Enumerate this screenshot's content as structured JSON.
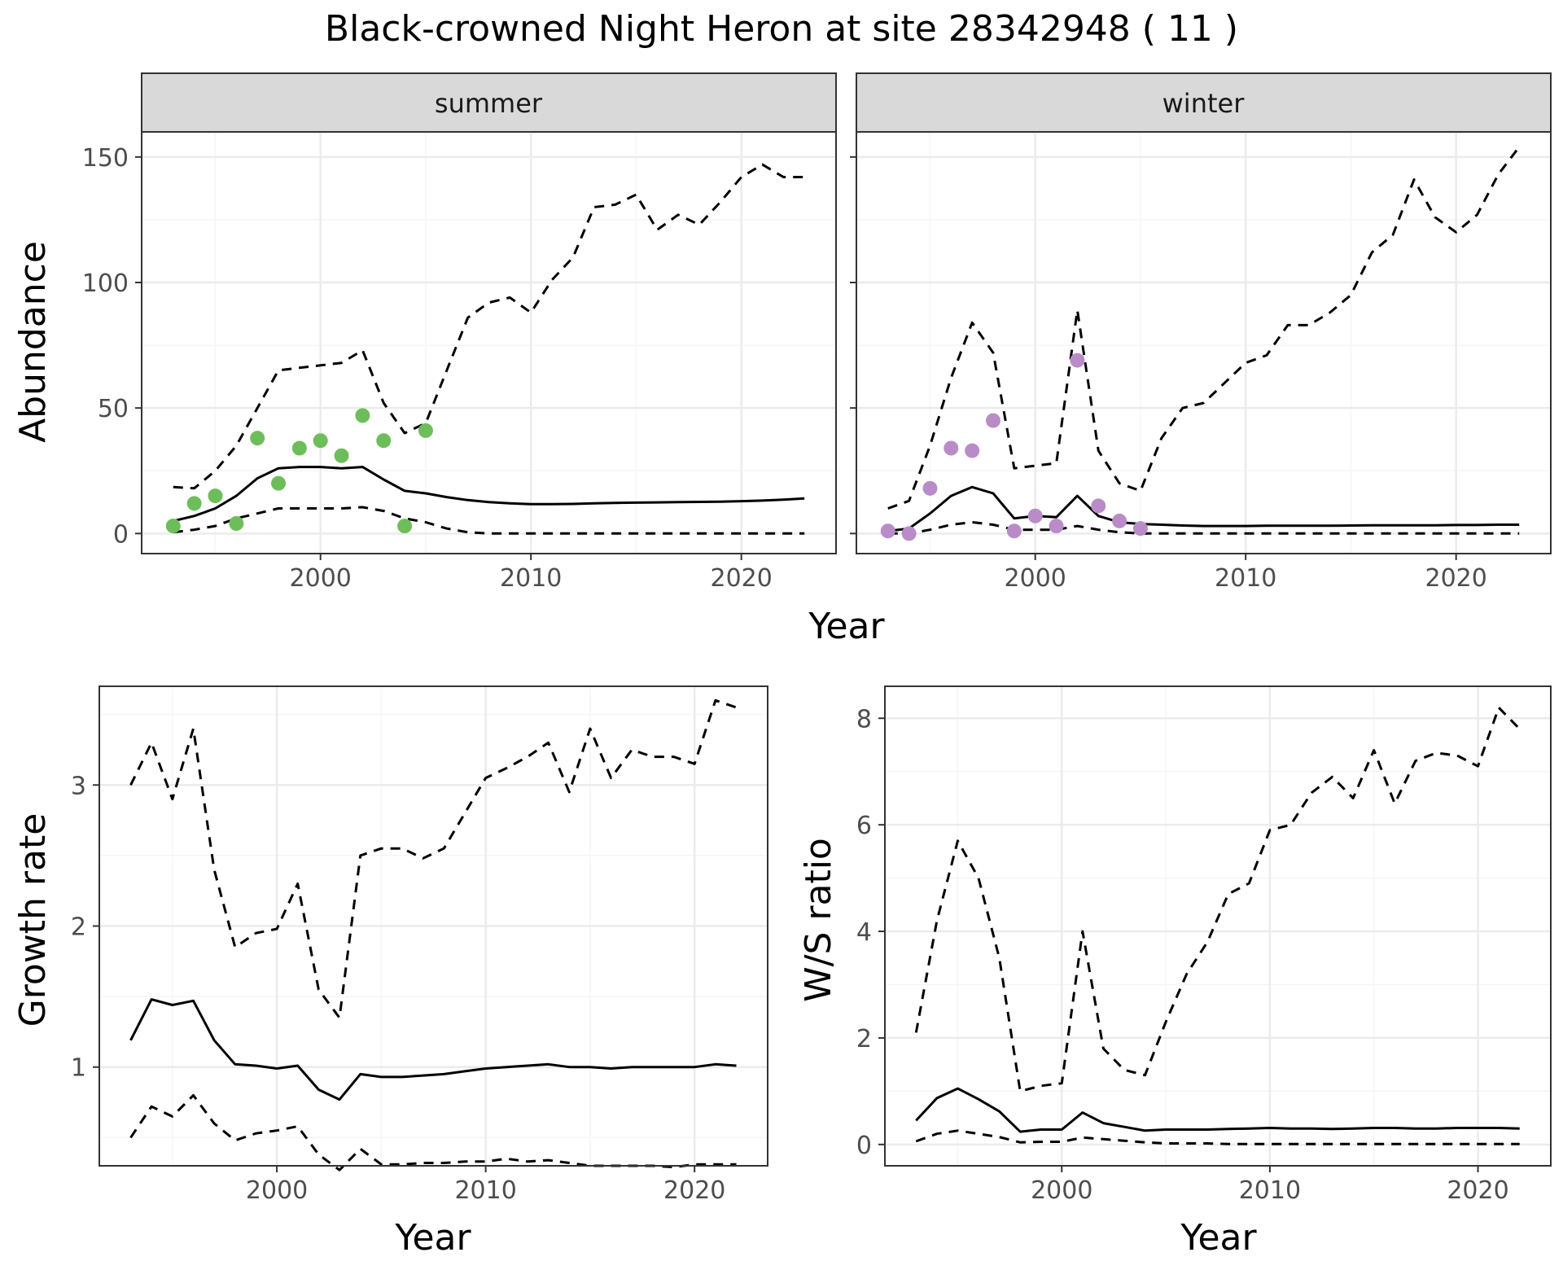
{
  "title": "Black-crowned Night Heron at site 28342948 ( 11 )",
  "colors": {
    "summer_points": "#6DBE5B",
    "winter_points": "#B98CC8",
    "line": "#000000",
    "grid_major": "#EBEBEB",
    "grid_minor": "#F5F5F5",
    "strip_fill": "#D9D9D9",
    "strip_border": "#333333"
  },
  "chart_data": [
    {
      "id": "abundance-summer",
      "type": "line",
      "facet_label": "summer",
      "ylabel": "Abundance",
      "xlabel": "Year",
      "xlim": [
        1991.5,
        2024.5
      ],
      "ylim": [
        -8,
        160
      ],
      "x_ticks": [
        2000,
        2010,
        2020
      ],
      "x_tick_labels": [
        "2000",
        "2010",
        "2020"
      ],
      "y_ticks": [
        0,
        50,
        100,
        150
      ],
      "y_tick_labels": [
        "0",
        "50",
        "100",
        "150"
      ],
      "grid": true,
      "series": [
        {
          "role": "upper",
          "style": "dashed",
          "x": [
            1993,
            1994,
            1995,
            1996,
            1997,
            1998,
            1999,
            2000,
            2001,
            2002,
            2003,
            2004,
            2005,
            2006,
            2007,
            2008,
            2009,
            2010,
            2011,
            2012,
            2013,
            2014,
            2015,
            2016,
            2017,
            2018,
            2019,
            2020,
            2021,
            2022,
            2023
          ],
          "y": [
            18.5,
            18,
            25,
            35,
            50,
            65,
            66,
            67,
            68,
            73,
            52,
            40,
            44,
            65,
            86,
            92,
            94,
            88,
            101,
            110,
            130,
            131,
            135,
            121,
            127,
            123,
            132,
            142,
            147,
            142,
            142
          ]
        },
        {
          "role": "mean",
          "style": "solid",
          "x": [
            1993,
            1994,
            1995,
            1996,
            1997,
            1998,
            1999,
            2000,
            2001,
            2002,
            2003,
            2004,
            2005,
            2006,
            2007,
            2008,
            2009,
            2010,
            2011,
            2012,
            2013,
            2014,
            2015,
            2016,
            2017,
            2018,
            2019,
            2020,
            2021,
            2022,
            2023
          ],
          "y": [
            5,
            7,
            10,
            15,
            22,
            26,
            26.5,
            26.5,
            26,
            26.5,
            21.5,
            17,
            16,
            14.5,
            13.3,
            12.5,
            12,
            11.7,
            11.7,
            11.8,
            12,
            12.2,
            12.3,
            12.4,
            12.5,
            12.6,
            12.7,
            12.9,
            13.1,
            13.5,
            14
          ]
        },
        {
          "role": "lower",
          "style": "dashed",
          "x": [
            1993,
            1994,
            1995,
            1996,
            1997,
            1998,
            1999,
            2000,
            2001,
            2002,
            2003,
            2004,
            2005,
            2006,
            2007,
            2008,
            2009,
            2010,
            2011,
            2012,
            2013,
            2014,
            2015,
            2016,
            2017,
            2018,
            2019,
            2020,
            2021,
            2022,
            2023
          ],
          "y": [
            0.5,
            1.5,
            3,
            6,
            8,
            10,
            10,
            10,
            10,
            10.5,
            9,
            6,
            4.5,
            2,
            0.5,
            0,
            0,
            0,
            0,
            0,
            0,
            0,
            0,
            0,
            0,
            0,
            0,
            0,
            0,
            0,
            0
          ]
        }
      ],
      "points": {
        "x": [
          1993,
          1994,
          1995,
          1996,
          1997,
          1998,
          1999,
          2000,
          2001,
          2002,
          2003,
          2004,
          2005
        ],
        "y": [
          3,
          12,
          15,
          4,
          38,
          20,
          34,
          37,
          31,
          47,
          37,
          3,
          41
        ]
      }
    },
    {
      "id": "abundance-winter",
      "type": "line",
      "facet_label": "winter",
      "xlabel": "Year",
      "xlim": [
        1991.5,
        2024.5
      ],
      "ylim": [
        -8,
        160
      ],
      "x_ticks": [
        2000,
        2010,
        2020
      ],
      "x_tick_labels": [
        "2000",
        "2010",
        "2020"
      ],
      "y_ticks": [
        0,
        50,
        100,
        150
      ],
      "grid": true,
      "series": [
        {
          "role": "upper",
          "style": "dashed",
          "x": [
            1993,
            1994,
            1995,
            1996,
            1997,
            1998,
            1999,
            2000,
            2001,
            2002,
            2003,
            2004,
            2005,
            2006,
            2007,
            2008,
            2009,
            2010,
            2011,
            2012,
            2013,
            2014,
            2015,
            2016,
            2017,
            2018,
            2019,
            2020,
            2021,
            2022,
            2023
          ],
          "y": [
            10,
            13,
            35,
            62,
            84,
            72,
            26,
            27,
            28,
            89,
            33,
            20,
            17,
            38,
            50,
            52,
            60,
            68,
            71,
            83,
            83,
            88,
            95,
            112,
            119,
            141,
            126,
            120,
            127,
            143,
            154
          ]
        },
        {
          "role": "mean",
          "style": "solid",
          "x": [
            1993,
            1994,
            1995,
            1996,
            1997,
            1998,
            1999,
            2000,
            2001,
            2002,
            2003,
            2004,
            2005,
            2006,
            2007,
            2008,
            2009,
            2010,
            2011,
            2012,
            2013,
            2014,
            2015,
            2016,
            2017,
            2018,
            2019,
            2020,
            2021,
            2022,
            2023
          ],
          "y": [
            1,
            2,
            8,
            15,
            18.5,
            16,
            6,
            7,
            6.5,
            15,
            7,
            4.5,
            3.8,
            3.5,
            3.2,
            3,
            3,
            3,
            3.1,
            3.1,
            3.1,
            3.1,
            3.2,
            3.3,
            3.3,
            3.3,
            3.3,
            3.4,
            3.4,
            3.5,
            3.5
          ]
        },
        {
          "role": "lower",
          "style": "dashed",
          "x": [
            1993,
            1994,
            1995,
            1996,
            1997,
            1998,
            1999,
            2000,
            2001,
            2002,
            2003,
            2004,
            2005,
            2006,
            2007,
            2008,
            2009,
            2010,
            2011,
            2012,
            2013,
            2014,
            2015,
            2016,
            2017,
            2018,
            2019,
            2020,
            2021,
            2022,
            2023
          ],
          "y": [
            0,
            0,
            1.5,
            3.5,
            4.5,
            3.5,
            1.5,
            1.5,
            1.5,
            3,
            1.5,
            0.5,
            0,
            0,
            0,
            0,
            0,
            0,
            0,
            0,
            0,
            0,
            0,
            0,
            0,
            0,
            0,
            0,
            0,
            0,
            0
          ]
        }
      ],
      "points": {
        "x": [
          1993,
          1994,
          1995,
          1996,
          1997,
          1998,
          1999,
          2000,
          2001,
          2002,
          2003,
          2004,
          2005
        ],
        "y": [
          1,
          0,
          18,
          34,
          33,
          45,
          1,
          7,
          3,
          69,
          11,
          5,
          2
        ]
      }
    },
    {
      "id": "growth-rate",
      "type": "line",
      "ylabel": "Growth rate",
      "xlabel": "Year",
      "xlim": [
        1991.5,
        2023.5
      ],
      "ylim": [
        0.3,
        3.7
      ],
      "x_ticks": [
        2000,
        2010,
        2020
      ],
      "x_tick_labels": [
        "2000",
        "2010",
        "2020"
      ],
      "y_ticks": [
        1,
        2,
        3
      ],
      "y_tick_labels": [
        "1",
        "2",
        "3"
      ],
      "grid": true,
      "series": [
        {
          "role": "upper",
          "style": "dashed",
          "x": [
            1993,
            1994,
            1995,
            1996,
            1997,
            1998,
            1999,
            2000,
            2001,
            2002,
            2003,
            2004,
            2005,
            2006,
            2007,
            2008,
            2009,
            2010,
            2011,
            2012,
            2013,
            2014,
            2015,
            2016,
            2017,
            2018,
            2019,
            2020,
            2021,
            2022
          ],
          "y": [
            3,
            3.3,
            2.9,
            3.4,
            2.4,
            1.85,
            1.95,
            1.98,
            2.3,
            1.55,
            1.35,
            2.5,
            2.55,
            2.55,
            2.48,
            2.55,
            2.8,
            3.05,
            3.12,
            3.2,
            3.3,
            2.95,
            3.4,
            3.05,
            3.25,
            3.2,
            3.2,
            3.15,
            3.6,
            3.55
          ]
        },
        {
          "role": "mean",
          "style": "solid",
          "x": [
            1993,
            1994,
            1995,
            1996,
            1997,
            1998,
            1999,
            2000,
            2001,
            2002,
            2003,
            2004,
            2005,
            2006,
            2007,
            2008,
            2009,
            2010,
            2011,
            2012,
            2013,
            2014,
            2015,
            2016,
            2017,
            2018,
            2019,
            2020,
            2021,
            2022
          ],
          "y": [
            1.19,
            1.48,
            1.44,
            1.47,
            1.19,
            1.02,
            1.01,
            0.99,
            1.01,
            0.84,
            0.77,
            0.95,
            0.93,
            0.93,
            0.94,
            0.95,
            0.97,
            0.99,
            1,
            1.01,
            1.02,
            1,
            1,
            0.99,
            1,
            1,
            1,
            1,
            1.02,
            1.01
          ]
        },
        {
          "role": "lower",
          "style": "dashed",
          "x": [
            1993,
            1994,
            1995,
            1996,
            1997,
            1998,
            1999,
            2000,
            2001,
            2002,
            2003,
            2004,
            2005,
            2006,
            2007,
            2008,
            2009,
            2010,
            2011,
            2012,
            2013,
            2014,
            2015,
            2016,
            2017,
            2018,
            2019,
            2020,
            2021,
            2022
          ],
          "y": [
            0.5,
            0.72,
            0.65,
            0.8,
            0.6,
            0.48,
            0.53,
            0.55,
            0.58,
            0.38,
            0.27,
            0.42,
            0.31,
            0.31,
            0.32,
            0.32,
            0.33,
            0.33,
            0.35,
            0.33,
            0.34,
            0.32,
            0.3,
            0.3,
            0.3,
            0.3,
            0.29,
            0.31,
            0.31,
            0.31
          ]
        }
      ]
    },
    {
      "id": "ws-ratio",
      "type": "line",
      "ylabel": "W/S ratio",
      "xlabel": "Year",
      "xlim": [
        1991.5,
        2023.5
      ],
      "ylim": [
        -0.4,
        8.6
      ],
      "x_ticks": [
        2000,
        2010,
        2020
      ],
      "x_tick_labels": [
        "2000",
        "2010",
        "2020"
      ],
      "y_ticks": [
        0,
        2,
        4,
        6,
        8
      ],
      "y_tick_labels": [
        "0",
        "2",
        "4",
        "6",
        "8"
      ],
      "grid": true,
      "series": [
        {
          "role": "upper",
          "style": "dashed",
          "x": [
            1993,
            1994,
            1995,
            1996,
            1997,
            1998,
            1999,
            2000,
            2001,
            2002,
            2003,
            2004,
            2005,
            2006,
            2007,
            2008,
            2009,
            2010,
            2011,
            2012,
            2013,
            2014,
            2015,
            2016,
            2017,
            2018,
            2019,
            2020,
            2021,
            2022
          ],
          "y": [
            2.1,
            4.2,
            5.7,
            5,
            3.5,
            1,
            1.1,
            1.15,
            4,
            1.8,
            1.4,
            1.3,
            2.3,
            3.2,
            3.8,
            4.7,
            4.9,
            5.9,
            6,
            6.6,
            6.9,
            6.5,
            7.4,
            6.4,
            7.2,
            7.35,
            7.3,
            7.1,
            8.2,
            7.8
          ]
        },
        {
          "role": "mean",
          "style": "solid",
          "x": [
            1993,
            1994,
            1995,
            1996,
            1997,
            1998,
            1999,
            2000,
            2001,
            2002,
            2003,
            2004,
            2005,
            2006,
            2007,
            2008,
            2009,
            2010,
            2011,
            2012,
            2013,
            2014,
            2015,
            2016,
            2017,
            2018,
            2019,
            2020,
            2021,
            2022
          ],
          "y": [
            0.45,
            0.87,
            1.05,
            0.85,
            0.62,
            0.24,
            0.28,
            0.28,
            0.6,
            0.4,
            0.33,
            0.26,
            0.28,
            0.28,
            0.28,
            0.29,
            0.3,
            0.31,
            0.3,
            0.3,
            0.29,
            0.3,
            0.31,
            0.31,
            0.3,
            0.3,
            0.31,
            0.31,
            0.31,
            0.3
          ]
        },
        {
          "role": "lower",
          "style": "dashed",
          "x": [
            1993,
            1994,
            1995,
            1996,
            1997,
            1998,
            1999,
            2000,
            2001,
            2002,
            2003,
            2004,
            2005,
            2006,
            2007,
            2008,
            2009,
            2010,
            2011,
            2012,
            2013,
            2014,
            2015,
            2016,
            2017,
            2018,
            2019,
            2020,
            2021,
            2022
          ],
          "y": [
            0.06,
            0.2,
            0.26,
            0.2,
            0.14,
            0.04,
            0.05,
            0.05,
            0.13,
            0.1,
            0.07,
            0.04,
            0.02,
            0.02,
            0.02,
            0.01,
            0.01,
            0.01,
            0.01,
            0.01,
            0.01,
            0.01,
            0.01,
            0.01,
            0.01,
            0.01,
            0.01,
            0.01,
            0.01,
            0.01
          ]
        }
      ]
    }
  ]
}
